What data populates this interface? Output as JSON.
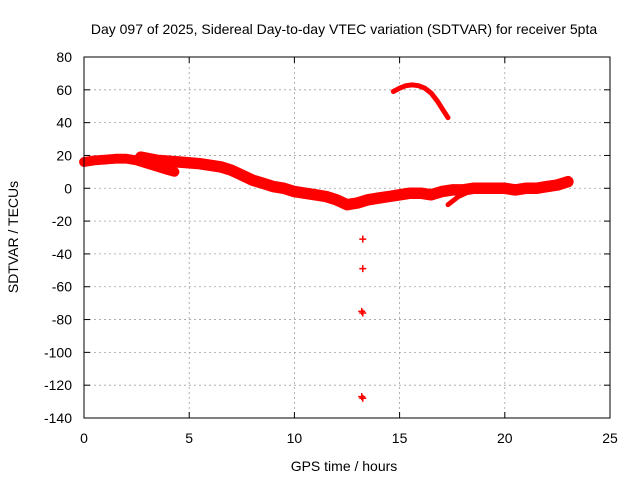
{
  "chart_data": {
    "type": "scatter",
    "title": "Day 097 of 2025, Sidereal Day-to-day VTEC variation (SDTVAR) for receiver 5pta",
    "xlabel": "GPS time / hours",
    "ylabel": "SDTVAR / TECUs",
    "xlim": [
      0,
      25
    ],
    "ylim": [
      -140,
      80
    ],
    "xticks": [
      0,
      5,
      10,
      15,
      20,
      25
    ],
    "yticks": [
      -140,
      -120,
      -100,
      -80,
      -60,
      -40,
      -20,
      0,
      20,
      40,
      60,
      80
    ],
    "grid": true,
    "marker": "+",
    "color": "#ff0000",
    "band_segments": [
      {
        "name": "morning-band",
        "points": [
          [
            0,
            16
          ],
          [
            0.5,
            17
          ],
          [
            1,
            17.5
          ],
          [
            1.5,
            18
          ],
          [
            2,
            18
          ],
          [
            2.5,
            17
          ],
          [
            3,
            15
          ],
          [
            3.5,
            13
          ],
          [
            4,
            11
          ],
          [
            4.3,
            10
          ]
        ],
        "spread": 6
      },
      {
        "name": "main-band",
        "points": [
          [
            2.7,
            19
          ],
          [
            3.5,
            17
          ],
          [
            4.5,
            16
          ],
          [
            5.5,
            15
          ],
          [
            6.5,
            13
          ],
          [
            7,
            11
          ],
          [
            7.5,
            8
          ],
          [
            8,
            5
          ],
          [
            8.5,
            3
          ],
          [
            9,
            1
          ],
          [
            9.5,
            0
          ],
          [
            10,
            -2
          ],
          [
            10.5,
            -3
          ],
          [
            11,
            -4
          ],
          [
            11.5,
            -5
          ],
          [
            12,
            -7
          ],
          [
            12.5,
            -10
          ],
          [
            13,
            -9
          ],
          [
            13.5,
            -7
          ],
          [
            14,
            -6
          ],
          [
            14.5,
            -5
          ],
          [
            15,
            -4
          ],
          [
            15.5,
            -3
          ],
          [
            16,
            -3
          ],
          [
            16.5,
            -4
          ],
          [
            17,
            -2
          ],
          [
            17.5,
            -1
          ],
          [
            18,
            -1
          ],
          [
            18.5,
            0
          ],
          [
            19,
            0
          ],
          [
            19.5,
            0
          ],
          [
            20,
            0
          ],
          [
            20.5,
            -1
          ],
          [
            21,
            0
          ],
          [
            21.5,
            0
          ],
          [
            22,
            1
          ],
          [
            22.5,
            2
          ],
          [
            23,
            4
          ]
        ],
        "spread": 7
      },
      {
        "name": "afternoon-dip",
        "points": [
          [
            17.3,
            -10
          ],
          [
            17.8,
            -5
          ],
          [
            18.3,
            -2
          ]
        ],
        "spread": 3
      }
    ],
    "arc": {
      "name": "high-arc",
      "points": [
        [
          14.7,
          59
        ],
        [
          15,
          61
        ],
        [
          15.3,
          62.5
        ],
        [
          15.6,
          63
        ],
        [
          15.9,
          62.5
        ],
        [
          16.2,
          61
        ],
        [
          16.5,
          58
        ],
        [
          16.8,
          53
        ],
        [
          17.1,
          47
        ],
        [
          17.3,
          43
        ]
      ]
    },
    "isolated_points": [
      [
        13.25,
        -31
      ],
      [
        13.25,
        -49
      ],
      [
        13.2,
        -75
      ],
      [
        13.25,
        -76
      ],
      [
        13.2,
        -127
      ],
      [
        13.25,
        -128
      ]
    ]
  }
}
